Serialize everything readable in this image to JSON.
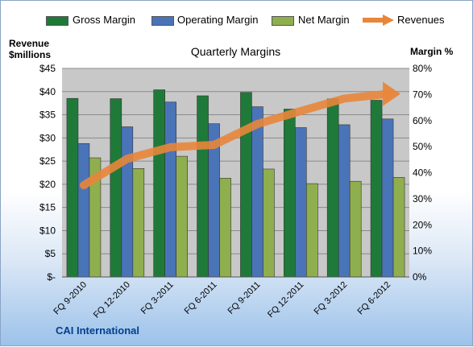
{
  "company": "CAI International",
  "axis_heads": {
    "left_line1": "Revenue",
    "left_line2": "$millions",
    "right": "Margin %"
  },
  "colors": {
    "gross": "#1f7a3a",
    "operating": "#4a74b8",
    "net": "#8fae4e",
    "revenues": "#e8863a",
    "plot_bg": "#c8c8c8"
  },
  "chart_data": {
    "type": "bar",
    "title": "Quarterly Margins",
    "categories": [
      "FQ 9-2010",
      "FQ 12-2010",
      "FQ 3-2011",
      "FQ 6-2011",
      "FQ 9-2011",
      "FQ 12-2011",
      "FQ 3-2012",
      "FQ 6-2012"
    ],
    "series": [
      {
        "name": "Gross Margin",
        "axis": "right",
        "values": [
          68.5,
          68.4,
          71.8,
          69.5,
          70.8,
          64.4,
          68.3,
          67.8
        ]
      },
      {
        "name": "Operating Margin",
        "axis": "right",
        "values": [
          51.2,
          57.6,
          67.1,
          58.8,
          65.3,
          57.3,
          58.4,
          60.6
        ]
      },
      {
        "name": "Net Margin",
        "axis": "right",
        "values": [
          45.7,
          41.6,
          46.3,
          37.9,
          41.4,
          35.8,
          36.7,
          38.2
        ]
      },
      {
        "name": "Revenues",
        "type": "line",
        "axis": "left",
        "values": [
          19.8,
          25.5,
          28.0,
          28.5,
          33.0,
          35.8,
          38.5,
          39.5
        ]
      }
    ],
    "left_axis": {
      "ylim": [
        0,
        45
      ],
      "ticks": [
        "$-",
        "$5",
        "$10",
        "$15",
        "$20",
        "$25",
        "$30",
        "$35",
        "$40",
        "$45"
      ]
    },
    "right_axis": {
      "ylim": [
        0,
        80
      ],
      "ticks": [
        "0%",
        "10%",
        "20%",
        "30%",
        "40%",
        "50%",
        "60%",
        "70%",
        "80%"
      ]
    },
    "grid": true,
    "legend": "top"
  }
}
